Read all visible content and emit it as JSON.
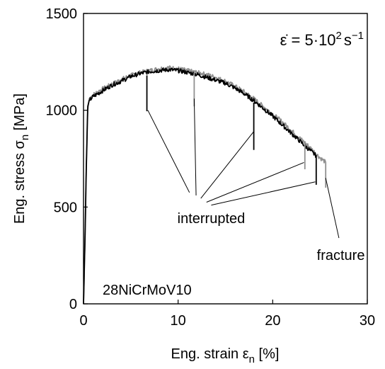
{
  "chart_data": {
    "type": "line",
    "xlabel": {
      "main": "Eng. strain ",
      "sym": "ε",
      "sub": "n",
      "unit": " [%]"
    },
    "ylabel": {
      "main": "Eng. stress ",
      "sym": "σ",
      "sub": "n",
      "unit": " [MPa]"
    },
    "xlim": [
      0,
      30
    ],
    "ylim": [
      0,
      1500
    ],
    "xticks": [
      0,
      10,
      20,
      30
    ],
    "yticks": [
      0,
      500,
      1000,
      1500
    ],
    "grid": false,
    "rate_label": {
      "sym": "ε̇",
      "eq": " = 5·10",
      "exp": "2",
      "unit": "s",
      "unit_exp": "−1"
    },
    "material_label": "28NiCrMoV10",
    "annotations": [
      {
        "text": "interrupted",
        "x": 13.5,
        "y": 490
      },
      {
        "text": "fracture",
        "x": 27.2,
        "y": 300
      }
    ],
    "pointers": [
      {
        "from": [
          11.2,
          575
        ],
        "to": [
          6.8,
          1000
        ]
      },
      {
        "from": [
          11.9,
          560
        ],
        "to": [
          11.7,
          1060
        ]
      },
      {
        "from": [
          12.4,
          545
        ],
        "to": [
          18.0,
          890
        ]
      },
      {
        "from": [
          13.0,
          525
        ],
        "to": [
          23.3,
          730
        ]
      },
      {
        "from": [
          13.5,
          510
        ],
        "to": [
          24.5,
          630
        ]
      },
      {
        "from": [
          27.0,
          340
        ],
        "to": [
          25.6,
          650
        ]
      }
    ],
    "series": [
      {
        "color": "#909090",
        "x": [
          0,
          0.15,
          0.3,
          0.45,
          0.6,
          1,
          2,
          3,
          4,
          5,
          6,
          7,
          8,
          9,
          10,
          11,
          12,
          13,
          14,
          15,
          16,
          17,
          18,
          19,
          20,
          21,
          22,
          23,
          24,
          24.5,
          25,
          25.5,
          25.6,
          25.6
        ],
        "y": [
          0,
          300,
          700,
          1000,
          1060,
          1080,
          1110,
          1135,
          1160,
          1180,
          1195,
          1205,
          1215,
          1220,
          1215,
          1205,
          1195,
          1185,
          1170,
          1150,
          1125,
          1095,
          1060,
          1020,
          980,
          940,
          895,
          850,
          805,
          780,
          755,
          735,
          730,
          600
        ]
      },
      {
        "color": "#000000",
        "x": [
          0,
          0.15,
          0.3,
          0.45,
          0.6,
          1,
          2,
          3,
          4,
          5,
          6,
          7,
          8,
          9,
          10,
          11,
          12,
          13,
          14,
          15,
          16,
          17,
          18,
          19,
          20,
          21,
          22,
          23,
          24,
          24.6,
          24.6
        ],
        "y": [
          0,
          320,
          720,
          1020,
          1050,
          1070,
          1100,
          1130,
          1150,
          1175,
          1190,
          1200,
          1205,
          1210,
          1205,
          1195,
          1185,
          1170,
          1155,
          1140,
          1115,
          1085,
          1050,
          1010,
          970,
          925,
          880,
          835,
          790,
          765,
          615
        ]
      }
    ],
    "drops": [
      {
        "color": "#000000",
        "x": 6.7,
        "y1": 1180,
        "y2": 995
      },
      {
        "color": "#909090",
        "x": 11.7,
        "y1": 1195,
        "y2": 1020
      },
      {
        "color": "#000000",
        "x": 18.0,
        "y1": 1040,
        "y2": 795
      },
      {
        "color": "#909090",
        "x": 23.4,
        "y1": 830,
        "y2": 695
      }
    ]
  }
}
